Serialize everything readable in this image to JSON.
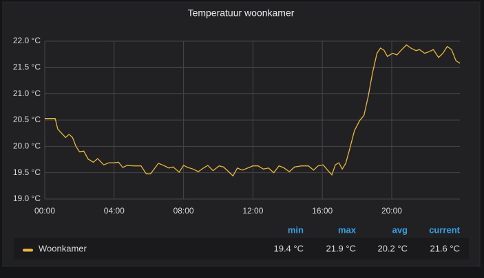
{
  "chart_data": {
    "type": "line",
    "title": "Temperatuur woonkamer",
    "xlim": [
      0,
      23.93
    ],
    "xticks": [
      {
        "value": 0,
        "label": "00:00"
      },
      {
        "value": 4,
        "label": "04:00"
      },
      {
        "value": 8,
        "label": "08:00"
      },
      {
        "value": 12,
        "label": "12:00"
      },
      {
        "value": 16,
        "label": "16:00"
      },
      {
        "value": 20,
        "label": "20:00"
      }
    ],
    "ylim": [
      19.0,
      22.0
    ],
    "yticks": [
      {
        "value": 19,
        "label": "19.0 °C"
      },
      {
        "value": 19.5,
        "label": "19.5 °C"
      },
      {
        "value": 20,
        "label": "20.0 °C"
      },
      {
        "value": 20.5,
        "label": "20.5 °C"
      },
      {
        "value": 21,
        "label": "21.0 °C"
      },
      {
        "value": 21.5,
        "label": "21.5 °C"
      },
      {
        "value": 22,
        "label": "22.0 °C"
      }
    ],
    "grid": true,
    "series": [
      {
        "name": "Woonkamer",
        "color": "#eab839",
        "x": [
          0,
          0.6,
          0.75,
          1.0,
          1.2,
          1.4,
          1.6,
          1.8,
          2.0,
          2.25,
          2.5,
          2.8,
          3.05,
          3.4,
          3.7,
          4.0,
          4.25,
          4.5,
          4.75,
          5.15,
          5.55,
          5.85,
          6.1,
          6.35,
          6.55,
          6.85,
          7.15,
          7.4,
          7.75,
          8.0,
          8.25,
          8.55,
          8.85,
          9.15,
          9.4,
          9.7,
          10.05,
          10.3,
          10.6,
          10.85,
          11.1,
          11.4,
          11.7,
          12.0,
          12.3,
          12.6,
          12.9,
          13.2,
          13.5,
          13.75,
          14.1,
          14.4,
          14.8,
          15.2,
          15.5,
          15.75,
          16.05,
          16.3,
          16.55,
          16.75,
          16.95,
          17.15,
          17.35,
          17.6,
          17.85,
          18.15,
          18.4,
          18.65,
          18.9,
          19.15,
          19.35,
          19.55,
          19.75,
          20.05,
          20.3,
          20.55,
          20.85,
          21.1,
          21.4,
          21.6,
          21.9,
          22.15,
          22.4,
          22.7,
          22.95,
          23.2,
          23.45,
          23.7,
          23.93
        ],
        "values": [
          20.53,
          20.53,
          20.33,
          20.24,
          20.17,
          20.23,
          20.17,
          20.0,
          19.9,
          19.91,
          19.76,
          19.7,
          19.77,
          19.65,
          19.69,
          19.69,
          19.7,
          19.6,
          19.64,
          19.63,
          19.63,
          19.48,
          19.48,
          19.59,
          19.68,
          19.64,
          19.59,
          19.61,
          19.51,
          19.64,
          19.6,
          19.57,
          19.52,
          19.59,
          19.64,
          19.54,
          19.63,
          19.61,
          19.52,
          19.44,
          19.59,
          19.55,
          19.59,
          19.63,
          19.63,
          19.57,
          19.59,
          19.5,
          19.63,
          19.6,
          19.52,
          19.61,
          19.63,
          19.63,
          19.55,
          19.63,
          19.65,
          19.55,
          19.46,
          19.65,
          19.69,
          19.57,
          19.68,
          19.98,
          20.3,
          20.49,
          20.59,
          20.96,
          21.41,
          21.77,
          21.87,
          21.83,
          21.71,
          21.77,
          21.74,
          21.83,
          21.93,
          21.87,
          21.82,
          21.84,
          21.77,
          21.8,
          21.84,
          21.69,
          21.77,
          21.9,
          21.84,
          21.63,
          21.58
        ]
      }
    ],
    "legend": {
      "columns": [
        "min",
        "max",
        "avg",
        "current"
      ],
      "values": [
        19.4,
        21.9,
        20.2,
        21.6
      ],
      "value_labels": [
        "19.4 °C",
        "21.9 °C",
        "20.2 °C",
        "21.6 °C"
      ]
    }
  }
}
